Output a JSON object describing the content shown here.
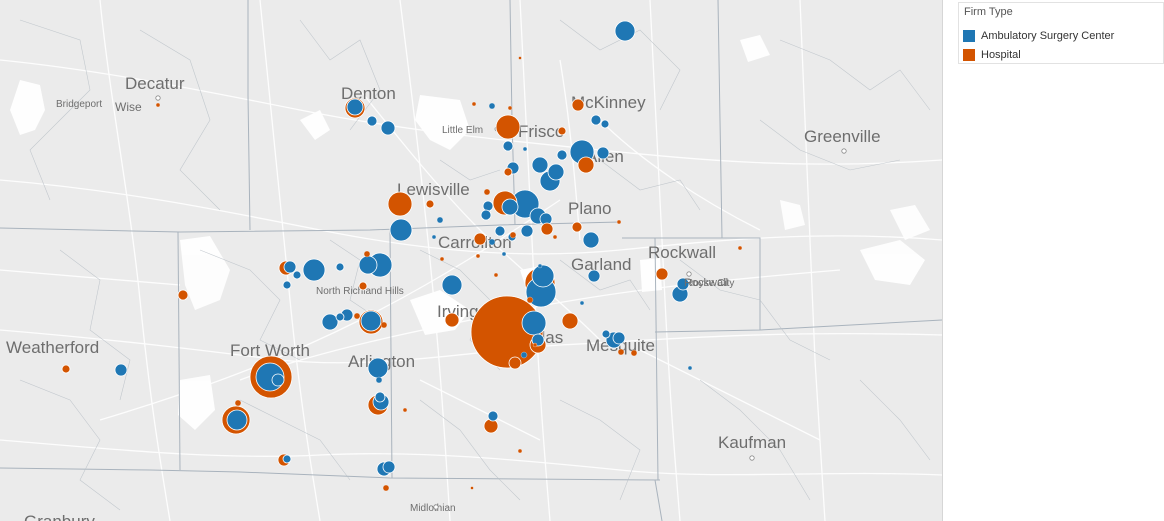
{
  "legend": {
    "title": "Firm Type",
    "items": [
      {
        "label": "Ambulatory Surgery Center",
        "color": "#1f77b4"
      },
      {
        "label": "Hospital",
        "color": "#d35400"
      }
    ]
  },
  "cities": [
    {
      "name": "Decatur",
      "size": "lg"
    },
    {
      "name": "Bridgeport",
      "size": "sm"
    },
    {
      "name": "Wise",
      "size": "sm2"
    },
    {
      "name": "Denton",
      "size": "lg"
    },
    {
      "name": "Little Elm",
      "size": "sm"
    },
    {
      "name": "McKinney",
      "size": "lg"
    },
    {
      "name": "Greenville",
      "size": "lg"
    },
    {
      "name": "Lewisville",
      "size": "lg"
    },
    {
      "name": "Plano",
      "size": "lg"
    },
    {
      "name": "Carrollton",
      "size": "lg"
    },
    {
      "name": "Rockwall",
      "size": "lg"
    },
    {
      "name": "Garland",
      "size": "lg"
    },
    {
      "name": "North Richland Hills",
      "size": "sm"
    },
    {
      "name": "Irving",
      "size": "lg"
    },
    {
      "name": "Mesquite",
      "size": "lg"
    },
    {
      "name": "Weatherford",
      "size": "lg"
    },
    {
      "name": "Fort Worth",
      "size": "lg"
    },
    {
      "name": "Arlington",
      "size": "lg"
    },
    {
      "name": "Kaufman",
      "size": "lg"
    },
    {
      "name": "Midlothian",
      "size": "sm"
    },
    {
      "name": "Granbury",
      "size": "lg"
    },
    {
      "name": "Frisco",
      "size": "lg"
    },
    {
      "name": "Allen",
      "size": "lg"
    },
    {
      "name": "Dallas",
      "size": "lg"
    },
    {
      "name": "Royse City",
      "size": "sm"
    }
  ],
  "colors": {
    "asc": "#1f77b4",
    "hospital": "#d35400",
    "map_bg": "#ebebeb",
    "roads": "#ffffff",
    "boundaries": "#a9b3bd"
  }
}
